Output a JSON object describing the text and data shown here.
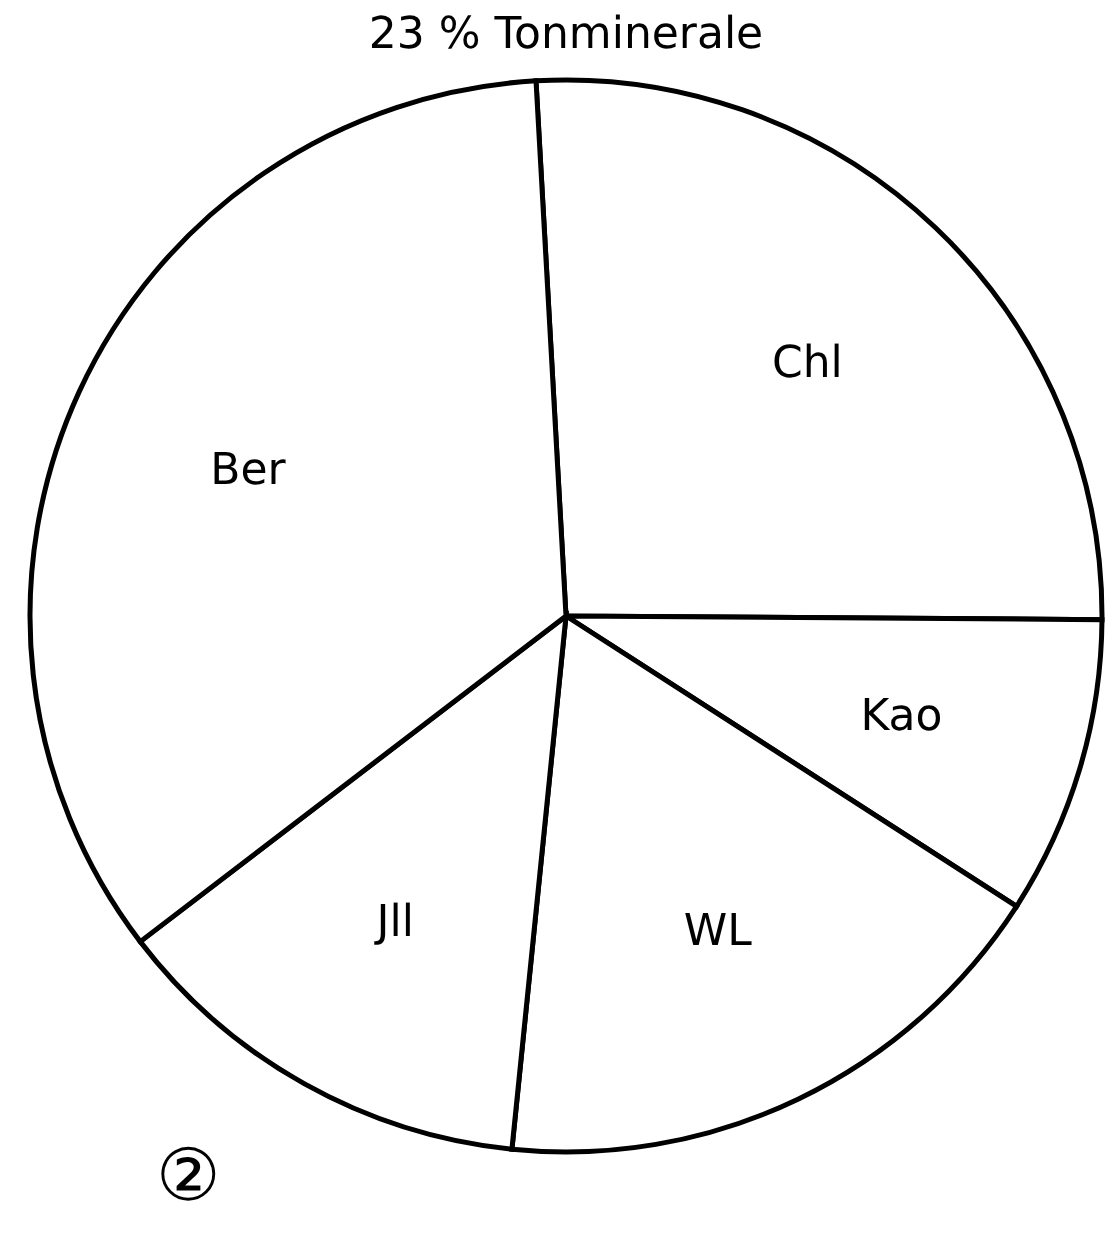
{
  "chart_data": {
    "type": "pie",
    "title": "23 % Tonminerale",
    "categories": [
      "Chl",
      "Kao",
      "WL",
      "Jll",
      "Ber"
    ],
    "values": [
      26,
      9,
      17.5,
      13,
      34.5
    ],
    "colors": [
      "#ffffff",
      "#ffffff",
      "#ffffff",
      "#ffffff",
      "#ffffff"
    ],
    "annotations": [
      "②"
    ]
  }
}
